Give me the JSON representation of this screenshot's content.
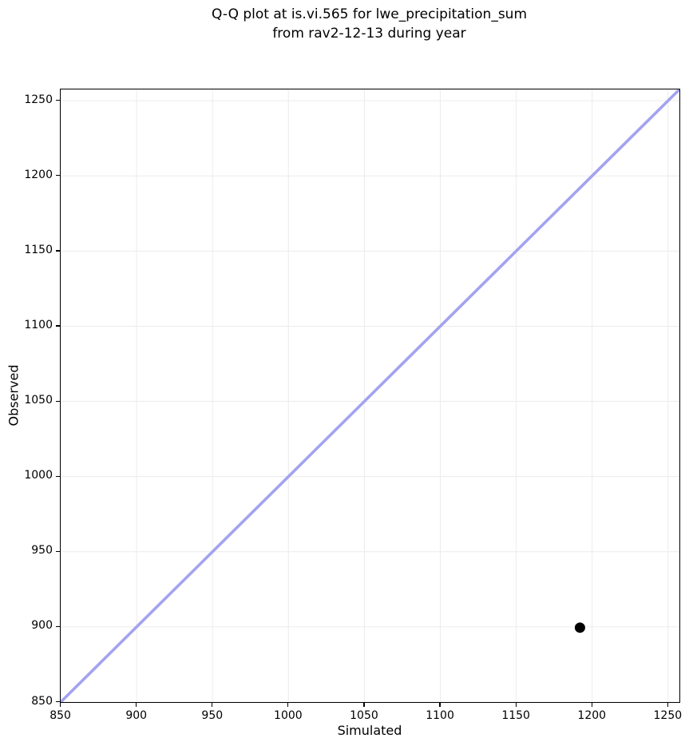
{
  "figure": {
    "title_line1": "Q-Q plot at is.vi.565 for lwe_precipitation_sum",
    "title_line2": "from rav2-12-13 during year"
  },
  "chart_data": {
    "type": "scatter",
    "title": "Q-Q plot at is.vi.565 for lwe_precipitation_sum\nfrom rav2-12-13 during year",
    "xlabel": "Simulated",
    "ylabel": "Observed",
    "xlim": [
      850,
      1257.5
    ],
    "ylim": [
      850,
      1257.5
    ],
    "x_ticks": [
      850,
      900,
      950,
      1000,
      1050,
      1100,
      1150,
      1200,
      1250
    ],
    "y_ticks": [
      850,
      900,
      950,
      1000,
      1050,
      1100,
      1150,
      1200,
      1250
    ],
    "grid": true,
    "grid_color": "#ececec",
    "axis_color": "#000000",
    "background_color": "#ffffff",
    "identity_line": {
      "x1": 850,
      "y1": 850,
      "x2": 1257.5,
      "y2": 1257.5,
      "color": "#a3a3f1",
      "width": 3.6
    },
    "series": [
      {
        "name": "observations",
        "marker": "circle",
        "marker_color": "#000000",
        "marker_radius": 6.5,
        "points": [
          {
            "x": 1192,
            "y": 899.5
          }
        ]
      }
    ]
  }
}
